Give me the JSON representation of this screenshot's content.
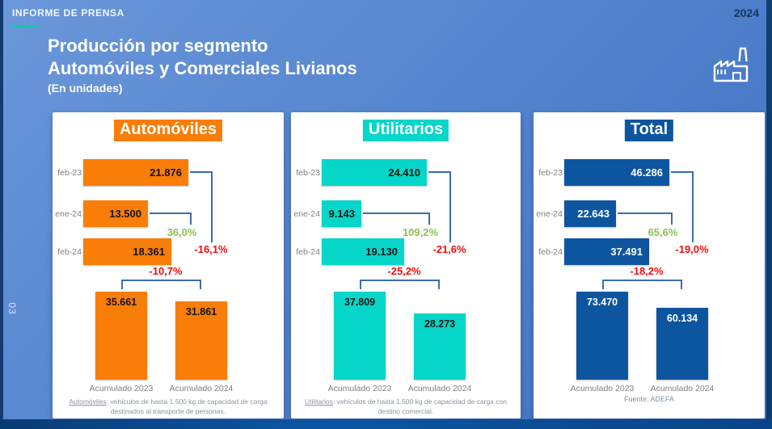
{
  "page": {
    "report_label": "INFORME DE PRENSA",
    "year_badge": "2024",
    "page_number": "03",
    "header_icon": "factory-icon",
    "title": {
      "line1": "Producción por segmento",
      "line2": "Automóviles y Comerciales Livianos",
      "line3": "(En unidades)"
    }
  },
  "colors": {
    "background_top": "#6B97DA",
    "background_bottom": "#3F70C1",
    "frame_navy": "#0F3E74",
    "teal_underline": "#12C9A2",
    "card_bg": "#FFFFFF",
    "orange": "#F97D09",
    "cyan": "#06D6C9",
    "dark_blue": "#0E55A0",
    "positive_green": "#8CC152",
    "negative_red": "#F20D0D",
    "connector_blue": "#3C6CB4",
    "label_gray": "#808080",
    "footnote_gray": "#8A93A0"
  },
  "chart_data": {
    "type": "bar",
    "unit": "unidades",
    "panels": [
      {
        "title": "Automóviles",
        "accent": "#F97D09",
        "value_text": "#141414",
        "monthly": {
          "categories": [
            "feb-23",
            "ene-24",
            "feb-24"
          ],
          "values": [
            21876,
            13500,
            18361
          ],
          "display": [
            "21.876",
            "13.500",
            "18.361"
          ]
        },
        "changes": {
          "ene24_vs_feb24": "36,0%",
          "feb23_vs_feb24": "-16,1%",
          "acumulado": "-10,7%"
        },
        "acumulado": {
          "categories": [
            "Acumulado 2023",
            "Acumulado 2024"
          ],
          "values": [
            35661,
            31861
          ],
          "display": [
            "35.661",
            "31.861"
          ]
        },
        "footnote_term": "Automóviles",
        "footnote_text": ": vehículos de hasta 1.500 kg de capacidad de carga destinados al transporte de personas."
      },
      {
        "title": "Utilitarios",
        "accent": "#06D6C9",
        "value_text": "#141414",
        "monthly": {
          "categories": [
            "feb-23",
            "ene-24",
            "feb-24"
          ],
          "values": [
            24410,
            9143,
            19130
          ],
          "display": [
            "24.410",
            "9.143",
            "19.130"
          ]
        },
        "changes": {
          "ene24_vs_feb24": "109,2%",
          "feb23_vs_feb24": "-21,6%",
          "acumulado": "-25,2%"
        },
        "acumulado": {
          "categories": [
            "Acumulado 2023",
            "Acumulado 2024"
          ],
          "values": [
            37809,
            28273
          ],
          "display": [
            "37.809",
            "28.273"
          ]
        },
        "footnote_term": "Utilitarios",
        "footnote_text": ": vehículos de hasta 1.500 kg de capacidad de carga con destino comercial."
      },
      {
        "title": "Total",
        "accent": "#0E55A0",
        "value_text": "#FFFFFF",
        "monthly": {
          "categories": [
            "feb-23",
            "ene-24",
            "feb-24"
          ],
          "values": [
            46286,
            22643,
            37491
          ],
          "display": [
            "46.286",
            "22.643",
            "37.491"
          ]
        },
        "changes": {
          "ene24_vs_feb24": "65,6%",
          "feb23_vs_feb24": "-19,0%",
          "acumulado": "-18,2%"
        },
        "acumulado": {
          "categories": [
            "Acumulado 2023",
            "Acumulado 2024"
          ],
          "values": [
            73470,
            60134
          ],
          "display": [
            "73.470",
            "60.134"
          ]
        },
        "source": "Fuente: ADEFA"
      }
    ]
  }
}
